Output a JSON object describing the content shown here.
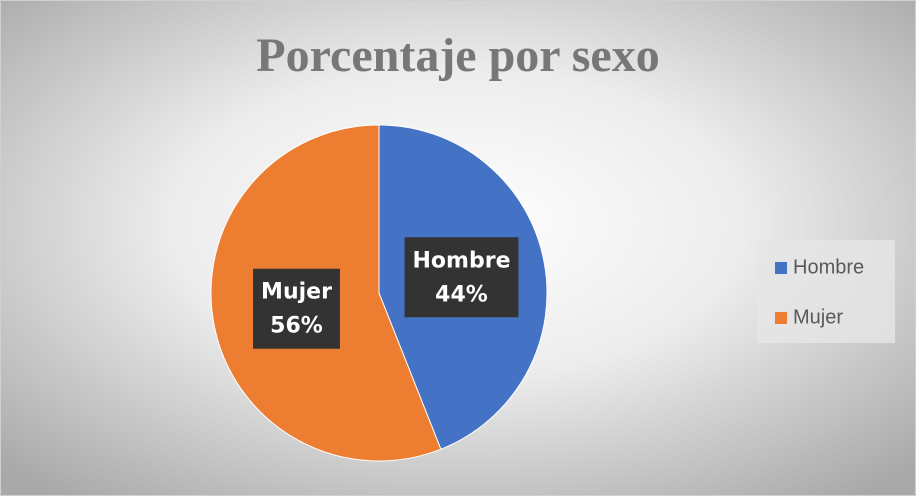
{
  "chart_data": {
    "type": "pie",
    "title": "Porcentaje por sexo",
    "categories": [
      "Hombre",
      "Mujer"
    ],
    "values": [
      44,
      56
    ],
    "value_labels": [
      "44%",
      "56%"
    ],
    "colors": [
      "#4472c4",
      "#ed7d31"
    ],
    "legend": "right"
  }
}
